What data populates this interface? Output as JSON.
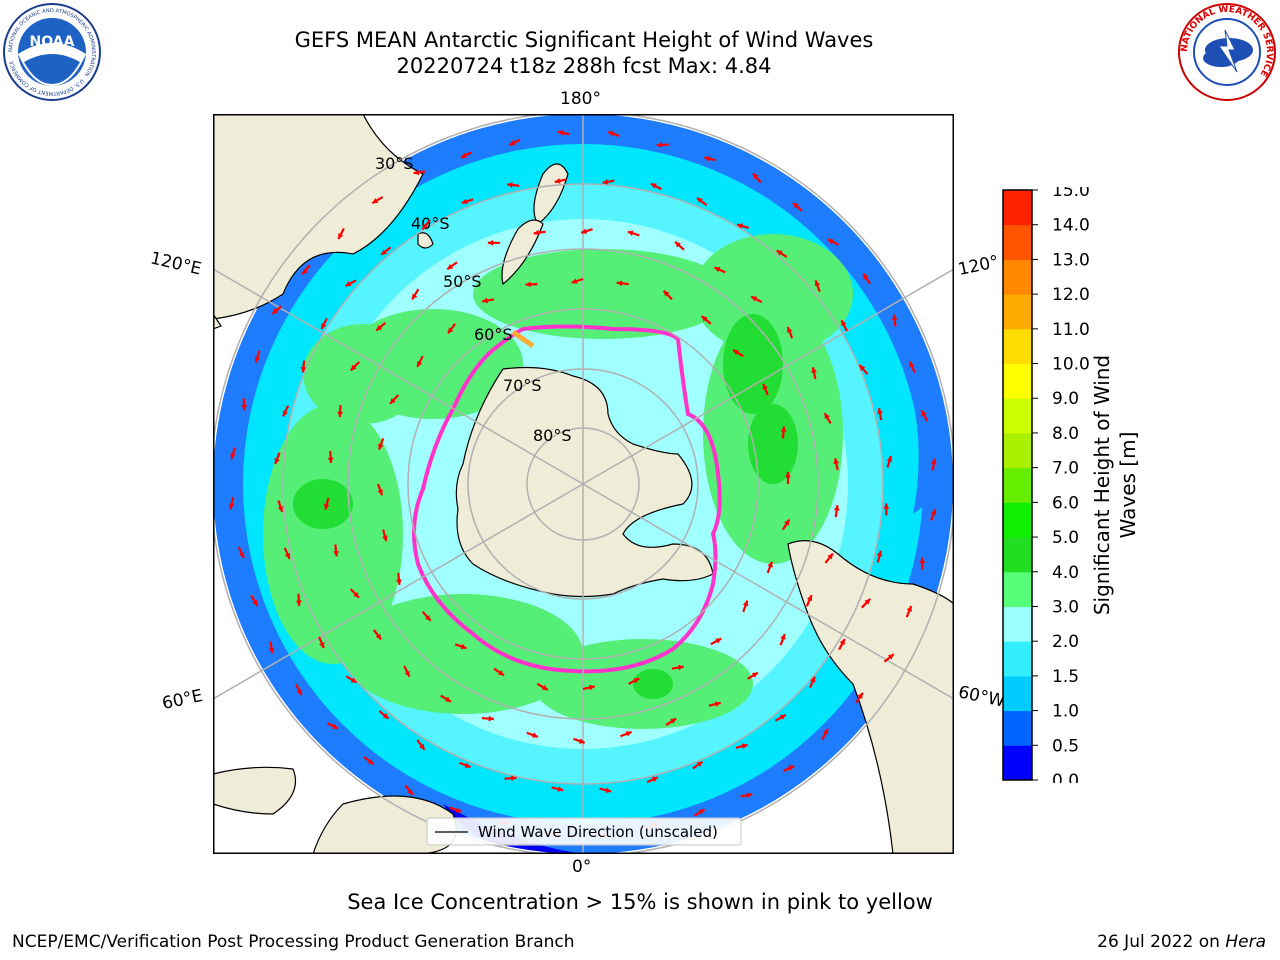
{
  "header": {
    "title_line1": "GEFS MEAN Antarctic Significant Height of Wind Waves",
    "title_line2": "20220724 t18z 288h fcst   Max: 4.84"
  },
  "logos": {
    "left": {
      "name": "noaa-logo",
      "text": "NOAA",
      "ring_text": "NATIONAL OCEANIC AND ATMOSPHERIC ADMINISTRATION · U.S. DEPARTMENT OF COMMERCE"
    },
    "right": {
      "name": "nws-logo",
      "ring_text": "NATIONAL WEATHER SERVICE"
    }
  },
  "map": {
    "projection": "south-polar-stereographic",
    "longitude_labels": {
      "top": "180°",
      "bottom": "0°",
      "left_upper": "120°E",
      "left_lower": "60°E",
      "right_upper": "120°",
      "right_lower": "60°W"
    },
    "latitude_labels": [
      "30°S",
      "40°S",
      "50°S",
      "60°S",
      "70°S",
      "80°S"
    ],
    "legend": {
      "text": "Wind Wave Direction (unscaled)"
    },
    "colors": {
      "land": "#efecd8",
      "ice_free_white": "#ffffff",
      "grid": "#b0b0b0",
      "arrow": "#ff0000",
      "ice_edge": [
        "#ff33cc",
        "#ffaa00",
        "#ffee44"
      ]
    }
  },
  "colorbar": {
    "label": "Significant Height of Wind Waves [m]",
    "ticks": [
      "0.0",
      "0.5",
      "1.0",
      "1.5",
      "2.0",
      "3.0",
      "4.0",
      "5.0",
      "6.0",
      "7.0",
      "8.0",
      "9.0",
      "10.0",
      "11.0",
      "12.0",
      "13.0",
      "14.0",
      "15.0"
    ],
    "colors": [
      "#0000ff",
      "#0066ff",
      "#00ccff",
      "#33eeff",
      "#99ffff",
      "#55ff77",
      "#22dd22",
      "#11ee00",
      "#66ee00",
      "#aaee00",
      "#ccff00",
      "#ffff00",
      "#ffdd00",
      "#ffaa00",
      "#ff8800",
      "#ff5500",
      "#ff2200"
    ]
  },
  "footer": {
    "note": "Sea Ice Concentration > 15% is shown in pink to yellow",
    "credit_left": "NCEP/EMC/Verification Post Processing Product Generation Branch",
    "credit_right_date": "26 Jul 2022 on ",
    "credit_right_machine": "Hera"
  }
}
